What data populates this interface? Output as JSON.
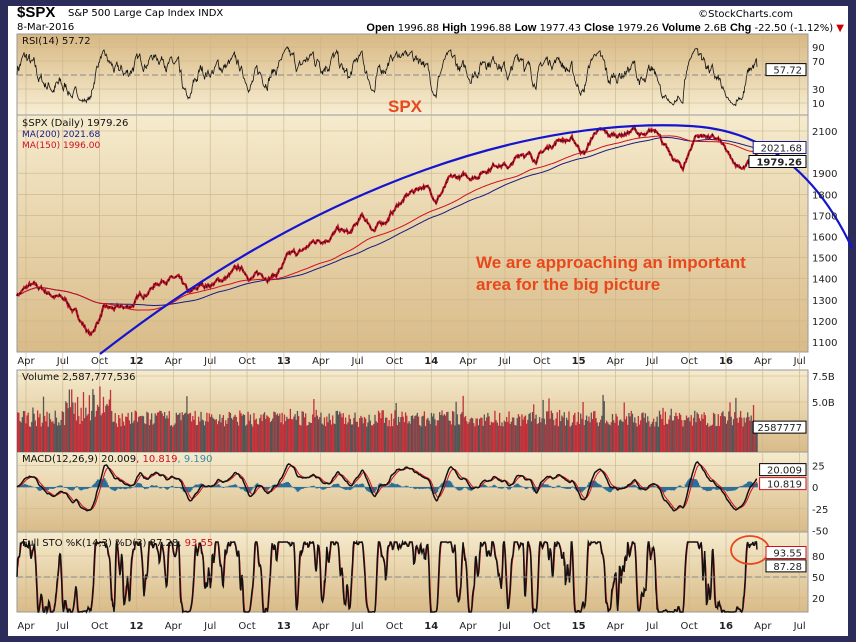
{
  "header": {
    "symbol": "$SPX",
    "name": "S&P 500 Large Cap Index INDX",
    "date": "8-Mar-2016",
    "watermark": "©StockCharts.com",
    "open_label": "Open",
    "open": "1996.88",
    "high_label": "High",
    "high": "1996.88",
    "low_label": "Low",
    "low": "1977.43",
    "close_label": "Close",
    "close": "1979.26",
    "volume_label": "Volume",
    "volume": "2.6B",
    "chg_label": "Chg",
    "chg": "-22.50 (-1.12%)"
  },
  "annotations": {
    "title": "SPX",
    "note_line1": "We are approaching an important",
    "note_line2": "area for the big picture"
  },
  "colors": {
    "frame": "#2b2c5a",
    "annotation": "#e8481c",
    "arc": "#1515d0",
    "ma200": "#1a1a80",
    "ma150": "#d01020",
    "volume_up": "#c0303a",
    "volume_down": "#555555",
    "macd_hist": "#2a6e9a"
  },
  "chart_data": [
    {
      "type": "line",
      "panel": "RSI",
      "label": "RSI(14) 57.72",
      "last": "57.72",
      "yticks": [
        "90",
        "70",
        "30",
        "10"
      ],
      "ylim": [
        0,
        100
      ]
    },
    {
      "type": "line",
      "panel": "Price",
      "label": "$SPX (Daily) 1979.26",
      "ma200_label": "MA(200) 2021.68",
      "ma150_label": "MA(150) 1996.00",
      "ma200_last": "2021.68",
      "last": "1979.26",
      "yticks": [
        "2100",
        "1900",
        "1800",
        "1700",
        "1600",
        "1500",
        "1400",
        "1300",
        "1200",
        "1100"
      ],
      "ylim": [
        1050,
        2180
      ],
      "x_start": "Mar 2011",
      "monthly_close": [
        1326,
        1363,
        1345,
        1321,
        1292,
        1219,
        1131,
        1253,
        1247,
        1258,
        1312,
        1366,
        1408,
        1398,
        1310,
        1362,
        1379,
        1406,
        1441,
        1412,
        1416,
        1426,
        1498,
        1515,
        1569,
        1598,
        1631,
        1606,
        1686,
        1633,
        1682,
        1757,
        1806,
        1848,
        1783,
        1859,
        1872,
        1884,
        1924,
        1960,
        1931,
        2003,
        1972,
        2018,
        2068,
        2059,
        1995,
        2105,
        2068,
        2086,
        2107,
        2063,
        2104,
        1972,
        1920,
        2079,
        2080,
        2044,
        1940,
        1932,
        1979
      ]
    },
    {
      "type": "bar",
      "panel": "Volume",
      "label": "Volume 2,587,777,536",
      "last": "2587777",
      "yticks": [
        "7.5B",
        "5.0B"
      ],
      "ylim_billions": [
        0,
        8
      ]
    },
    {
      "type": "line",
      "panel": "MACD",
      "label_main": "MACD(12,26,9) 20.009",
      "label_signal": ", 10.819",
      "label_hist": ", 9.190",
      "last_macd": "20.009",
      "last_signal": "10.819",
      "yticks": [
        "25",
        "0",
        "-25",
        "-50"
      ]
    },
    {
      "type": "line",
      "panel": "Full STO",
      "label_main": "Full STO %K(14,3) %D(3) 87.28,",
      "label_d": "93.55",
      "last_k": "87.28",
      "last_d": "93.55",
      "yticks": [
        "80",
        "50",
        "20"
      ]
    }
  ],
  "xaxis": {
    "ticks": [
      "Apr",
      "Jul",
      "Oct",
      "12",
      "Apr",
      "Jul",
      "Oct",
      "13",
      "Apr",
      "Jul",
      "Oct",
      "14",
      "Apr",
      "Jul",
      "Oct",
      "15",
      "Apr",
      "Jul",
      "Oct",
      "16",
      "Apr",
      "Jul"
    ]
  }
}
